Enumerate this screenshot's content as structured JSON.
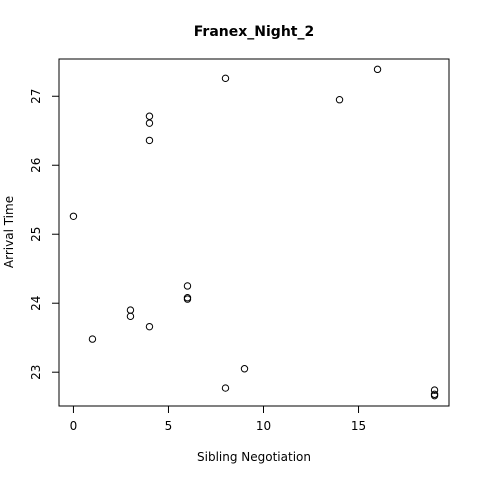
{
  "chart_data": {
    "type": "scatter",
    "title": "Franex_Night_2",
    "xlabel": "Sibling Negotiation",
    "ylabel": "Arrival Time",
    "xlim": [
      -0.76,
      19.76
    ],
    "ylim": [
      22.51,
      27.54
    ],
    "xticks": [
      0,
      5,
      10,
      15
    ],
    "yticks": [
      23,
      24,
      25,
      26,
      27
    ],
    "grid": false,
    "legend": "none",
    "points": [
      {
        "x": 0,
        "y": 25.26
      },
      {
        "x": 1,
        "y": 23.48
      },
      {
        "x": 3,
        "y": 23.9
      },
      {
        "x": 3,
        "y": 23.81
      },
      {
        "x": 4,
        "y": 26.71
      },
      {
        "x": 4,
        "y": 26.61
      },
      {
        "x": 4,
        "y": 26.36
      },
      {
        "x": 4,
        "y": 23.66
      },
      {
        "x": 6,
        "y": 24.25
      },
      {
        "x": 6,
        "y": 24.08
      },
      {
        "x": 6,
        "y": 24.06
      },
      {
        "x": 8,
        "y": 27.26
      },
      {
        "x": 8,
        "y": 22.77
      },
      {
        "x": 9,
        "y": 23.05
      },
      {
        "x": 14,
        "y": 26.95
      },
      {
        "x": 16,
        "y": 27.39
      },
      {
        "x": 19,
        "y": 22.74
      },
      {
        "x": 19,
        "y": 22.68
      },
      {
        "x": 19,
        "y": 22.66
      }
    ]
  }
}
